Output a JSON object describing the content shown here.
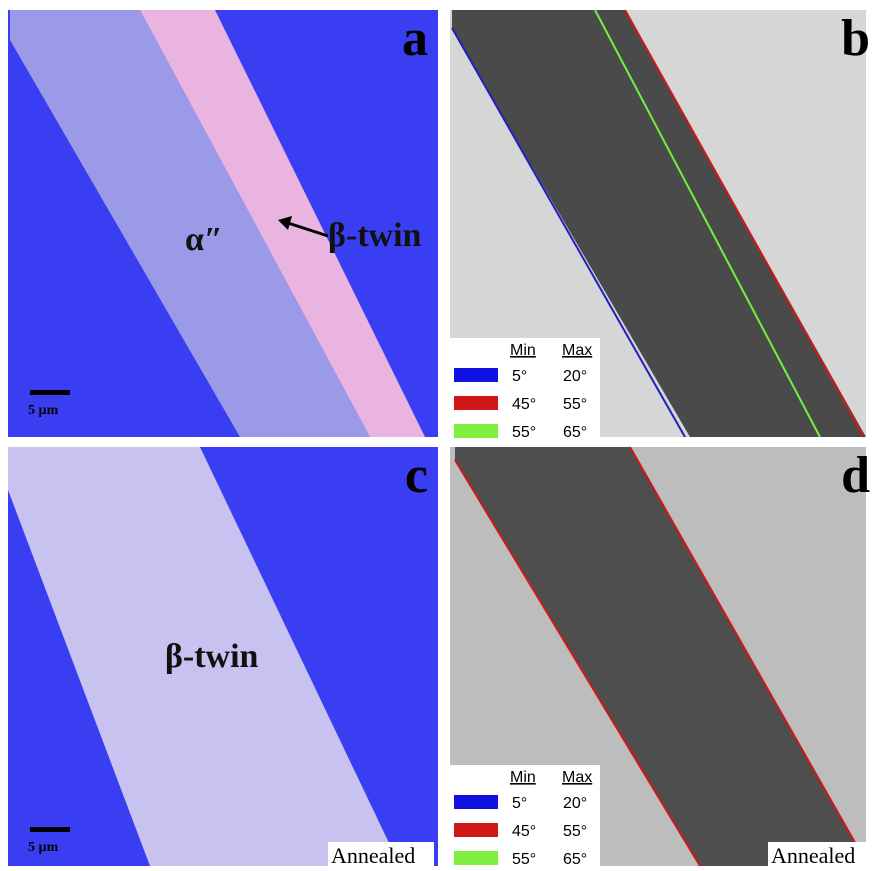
{
  "panels": [
    {
      "label": "a",
      "annotations": [
        "α″",
        "β-twin"
      ],
      "scale_bar": "5 µm"
    },
    {
      "label": "b",
      "legend": {
        "headers": [
          "Min",
          "Max"
        ],
        "rows": [
          {
            "color": "#1010e0",
            "min": "5°",
            "max": "20°"
          },
          {
            "color": "#d01818",
            "min": "45°",
            "max": "55°"
          },
          {
            "color": "#80f040",
            "min": "55°",
            "max": "65°"
          }
        ]
      }
    },
    {
      "label": "c",
      "annotations": [
        "β-twin"
      ],
      "scale_bar": "5 µm",
      "note": "Annealed"
    },
    {
      "label": "d",
      "legend": {
        "headers": [
          "Min",
          "Max"
        ],
        "rows": [
          {
            "color": "#1010e0",
            "min": "5°",
            "max": "20°"
          },
          {
            "color": "#d01818",
            "min": "45°",
            "max": "55°"
          },
          {
            "color": "#80f040",
            "min": "55°",
            "max": "65°"
          }
        ]
      },
      "note": "Annealed"
    }
  ]
}
